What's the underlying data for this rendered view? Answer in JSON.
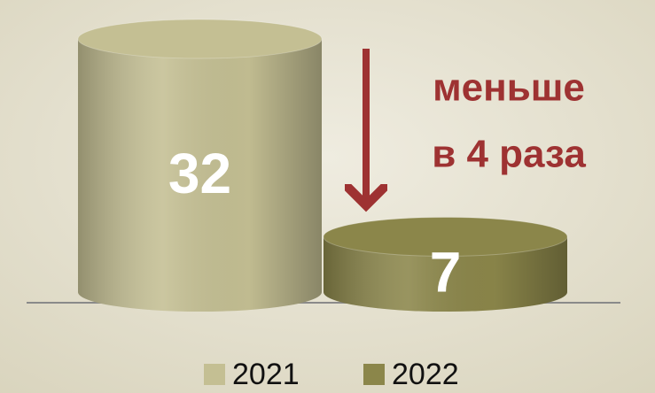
{
  "chart_data": {
    "type": "cylinder",
    "series": [
      {
        "name": "2021",
        "color": "#c4bf93",
        "values": [
          32
        ]
      },
      {
        "name": "2022",
        "color": "#8b864a",
        "values": [
          7
        ]
      }
    ],
    "annotation": [
      "меньше",
      "в 4 раза"
    ],
    "annotation_color": "#9e3232",
    "legend": "bottom"
  }
}
